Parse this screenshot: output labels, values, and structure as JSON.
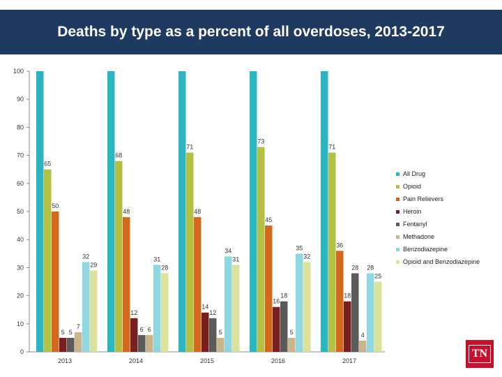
{
  "header": {
    "title": "Deaths by type as a percent of all overdoses, 2013-2017"
  },
  "logo": {
    "text": "TN"
  },
  "chart_data": {
    "type": "bar",
    "title": "Deaths by type as a percent of all overdoses, 2013-2017",
    "xlabel": "",
    "ylabel": "",
    "ylim": [
      0,
      100
    ],
    "yticks": [
      0,
      10,
      20,
      30,
      40,
      50,
      60,
      70,
      80,
      90,
      100
    ],
    "grid": false,
    "legend_position": "right",
    "categories": [
      "2013",
      "2014",
      "2015",
      "2016",
      "2017"
    ],
    "series": [
      {
        "name": "All Drug",
        "color": "#2bb5c0",
        "values": [
          100,
          100,
          100,
          100,
          100
        ],
        "labels": [
          "",
          "",
          "",
          "",
          ""
        ]
      },
      {
        "name": "Opioid",
        "color": "#b5bf42",
        "values": [
          65,
          68,
          71,
          73,
          71
        ],
        "labels": [
          "65",
          "68",
          "71",
          "73",
          "71"
        ]
      },
      {
        "name": "Pain Relievers",
        "color": "#d2691e",
        "values": [
          50,
          48,
          48,
          45,
          36
        ],
        "labels": [
          "50",
          "48",
          "48",
          "45",
          "36"
        ]
      },
      {
        "name": "Heroin",
        "color": "#7a1f1f",
        "values": [
          5,
          12,
          14,
          16,
          18
        ],
        "labels": [
          "5",
          "12",
          "14",
          "16",
          "18"
        ]
      },
      {
        "name": "Fentanyl",
        "color": "#5a5a5a",
        "values": [
          5,
          6,
          12,
          18,
          28
        ],
        "labels": [
          "5",
          "6",
          "12",
          "18",
          "28"
        ]
      },
      {
        "name": "Methadone",
        "color": "#c9b48c",
        "values": [
          7,
          6,
          5,
          5,
          4
        ],
        "labels": [
          "7",
          "6",
          "5",
          "5",
          "4"
        ]
      },
      {
        "name": "Benzodiazepine",
        "color": "#8ed6e0",
        "values": [
          32,
          31,
          34,
          35,
          28
        ],
        "labels": [
          "32",
          "31",
          "34",
          "35",
          "28"
        ]
      },
      {
        "name": "Opioid and Benzodiazepine",
        "color": "#dde29a",
        "values": [
          29,
          28,
          31,
          32,
          25
        ],
        "labels": [
          "29",
          "28",
          "31",
          "32",
          "25"
        ]
      }
    ]
  }
}
